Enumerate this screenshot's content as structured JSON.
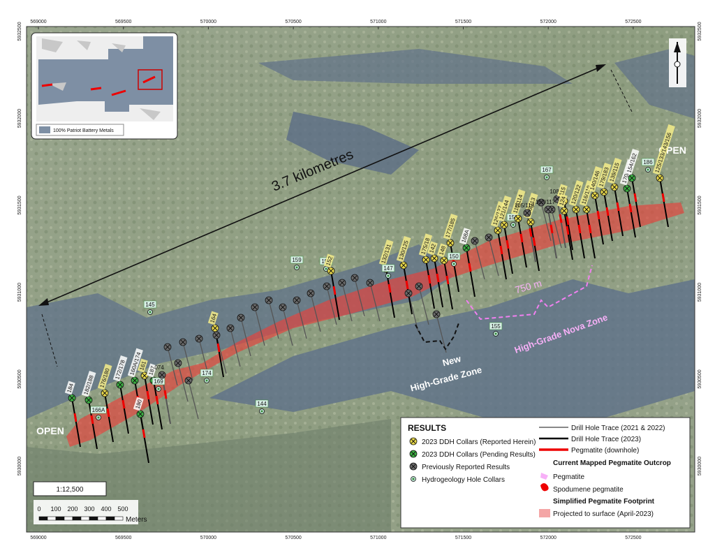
{
  "map": {
    "eastings": [
      569000,
      569500,
      570000,
      570500,
      571000,
      571500,
      572000,
      572500
    ],
    "northings": [
      5932500,
      5932000,
      5931500,
      5931000,
      5930500,
      5930000
    ],
    "distance_label": "3.7 kilometres",
    "open_labels": [
      "OPEN",
      "OPEN"
    ],
    "zones": {
      "nova_width": "750 m",
      "nova": "High-Grade Nova Zone",
      "new": [
        "New",
        "High-Grade Zone"
      ]
    },
    "inset_legend": "100% Patriot Battery Metals",
    "scale": {
      "ratio": "1:12,500",
      "ticks": [
        0,
        100,
        200,
        300,
        400,
        500
      ],
      "unit": "Meters"
    },
    "legend": {
      "title": "RESULTS",
      "collars": [
        {
          "label": "2023 DDH Collars (Reported Herein)",
          "kind": "reported"
        },
        {
          "label": "2023 DDH Collars (Pending Results)",
          "kind": "pending"
        },
        {
          "label": "Previously Reported Results",
          "kind": "previous"
        },
        {
          "label": "Hydrogeology Hole Collars",
          "kind": "hydro"
        }
      ],
      "traces": [
        "Drill Hole Trace (2021 & 2022)",
        "Drill Hole Trace (2023)",
        "Pegmatite (downhole)"
      ],
      "outcrop_title": "Current Mapped Pegmatite Outcrop",
      "outcrop": [
        "Pegmatite",
        "Spodumene pegmatite"
      ],
      "footprint_title": "Simplified Pegmatite Footprint",
      "footprint": [
        "Projected to surface (April-2023)"
      ]
    },
    "holes": [
      {
        "label": "184",
        "kind": "pending"
      },
      {
        "label": "182/188",
        "kind": "pending"
      },
      {
        "label": "176/180",
        "kind": "reported"
      },
      {
        "label": "172/178",
        "kind": "pending"
      },
      {
        "label": "160A/174",
        "kind": "pending"
      },
      {
        "label": "161",
        "kind": "reported"
      },
      {
        "label": "166A",
        "kind": "hydro"
      },
      {
        "label": "190",
        "kind": "pending"
      },
      {
        "label": "187",
        "kind": "pending"
      },
      {
        "label": "169",
        "kind": "hydro"
      },
      {
        "label": "074",
        "kind": "previous"
      },
      {
        "label": "174",
        "kind": "hydro"
      },
      {
        "label": "164",
        "kind": "reported"
      },
      {
        "label": "145",
        "kind": "hydro"
      },
      {
        "label": "144",
        "kind": "hydro"
      },
      {
        "label": "159",
        "kind": "hydro"
      },
      {
        "label": "157",
        "kind": "hydro"
      },
      {
        "label": "152",
        "kind": "reported"
      },
      {
        "label": "132/131",
        "kind": "reported"
      },
      {
        "label": "147",
        "kind": "hydro"
      },
      {
        "label": "130/125",
        "kind": "reported"
      },
      {
        "label": "175/18",
        "kind": "reported"
      },
      {
        "label": "142",
        "kind": "reported"
      },
      {
        "label": "148",
        "kind": "reported"
      },
      {
        "label": "150",
        "kind": "hydro"
      },
      {
        "label": "168A",
        "kind": "pending"
      },
      {
        "label": "177/185",
        "kind": "reported"
      },
      {
        "label": "126/127",
        "kind": "reported"
      },
      {
        "label": "121/144",
        "kind": "reported"
      },
      {
        "label": "153",
        "kind": "hydro"
      },
      {
        "label": "110/114",
        "kind": "reported"
      },
      {
        "label": "106/113",
        "kind": "reported"
      },
      {
        "label": "105/118",
        "kind": "previous"
      },
      {
        "label": "107/117",
        "kind": "previous"
      },
      {
        "label": "167",
        "kind": "hydro"
      },
      {
        "label": "108",
        "kind": "previous"
      },
      {
        "label": "115",
        "kind": "reported"
      },
      {
        "label": "124",
        "kind": "reported"
      },
      {
        "label": "120/122",
        "kind": "reported"
      },
      {
        "label": "116/119",
        "kind": "reported"
      },
      {
        "label": "140/146",
        "kind": "reported"
      },
      {
        "label": "179/183",
        "kind": "reported"
      },
      {
        "label": "139/115",
        "kind": "reported"
      },
      {
        "label": "170/173",
        "kind": "pending"
      },
      {
        "label": "186",
        "kind": "hydro"
      },
      {
        "label": "154/162",
        "kind": "pending"
      },
      {
        "label": "125/133/143/156",
        "kind": "reported"
      },
      {
        "label": "155",
        "kind": "hydro"
      }
    ]
  }
}
